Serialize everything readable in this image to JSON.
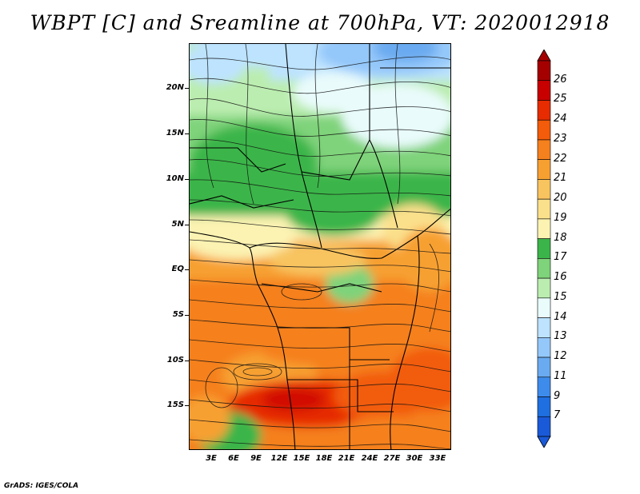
{
  "title": "WBPT [C] and Sreamline at 700hPa, VT: 2020012918",
  "credit": "GrADS: IGES/COLA",
  "map": {
    "lat_labels": [
      "20N",
      "15N",
      "10N",
      "5N",
      "EQ",
      "5S",
      "10S",
      "15S"
    ],
    "lon_labels": [
      "3E",
      "6E",
      "9E",
      "12E",
      "15E",
      "18E",
      "21E",
      "24E",
      "27E",
      "30E",
      "33E"
    ]
  },
  "colorbar": {
    "labels": [
      "26",
      "25",
      "24",
      "23",
      "22",
      "21",
      "20",
      "19",
      "18",
      "17",
      "16",
      "15",
      "14",
      "13",
      "12",
      "11",
      "9",
      "7"
    ],
    "colors": [
      "#a50000",
      "#c80000",
      "#e62c00",
      "#f25c0a",
      "#f5801e",
      "#f7a032",
      "#f8c460",
      "#fbe08c",
      "#fcf3b2",
      "#3bb54a",
      "#7fd37a",
      "#bbedb0",
      "#e9fbfb",
      "#bde3ff",
      "#94c8fa",
      "#6aaaf0",
      "#3d8beb",
      "#1f6fe0",
      "#1a5ad8"
    ]
  }
}
